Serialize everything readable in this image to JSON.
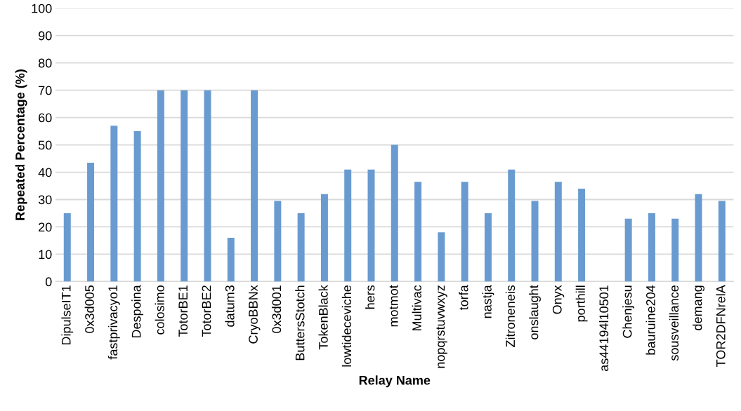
{
  "chart_data": {
    "type": "bar",
    "xlabel": "Relay Name",
    "ylabel": "Repeated Percentage (%)",
    "categories": [
      "DipulseIT1",
      "0x3d005",
      "fastprivacyo1",
      "Despoina",
      "colosimo",
      "TotorBE1",
      "TotorBE2",
      "datum3",
      "CryoBBNx",
      "0x3d001",
      "ButtersStotch",
      "TokenBlack",
      "lowtideceviche",
      "hers",
      "motmot",
      "Multivac",
      "nopqrstuvwxyz",
      "torfa",
      "nastja",
      "Zitroneneis",
      "onslaught",
      "Onyx",
      "porthill",
      "as44194l10501",
      "Chenjesu",
      "bauruine204",
      "sousveillance",
      "demang",
      "TOR2DFNrelA"
    ],
    "values": [
      25,
      43.5,
      57,
      55,
      70,
      70,
      70,
      16,
      70,
      29.5,
      25,
      32,
      41,
      41,
      50,
      36.5,
      18,
      36.5,
      25,
      41,
      29.5,
      36.5,
      34,
      0,
      23,
      25,
      23,
      32,
      29.5
    ],
    "color": "#6a9bd0",
    "ylim": [
      0,
      100
    ],
    "yticks": [
      0,
      10,
      20,
      30,
      40,
      50,
      60,
      70,
      80,
      90,
      100
    ],
    "grid": "y"
  }
}
